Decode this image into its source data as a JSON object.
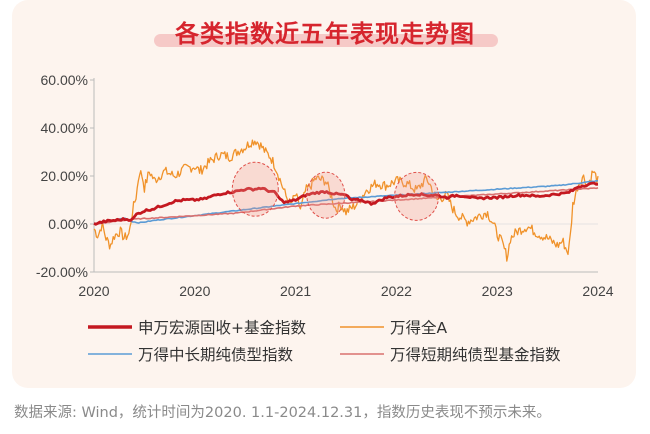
{
  "title": "各类指数近五年表现走势图",
  "footnote": "数据来源: Wind，统计时间为2020. 1.1-2024.12.31，指数历史表现不预示未来。",
  "chart_data": {
    "type": "line",
    "title": "各类指数近五年表现走势图",
    "xlabel": "",
    "ylabel": "",
    "x_ticks": [
      "2020",
      "2020",
      "2021",
      "2022",
      "2023",
      "2024"
    ],
    "y_ticks": [
      "60.00%",
      "40.00%",
      "20.00%",
      "0.00%",
      "-20.00%"
    ],
    "xlim": [
      2020.0,
      2025.0
    ],
    "ylim": [
      -20,
      60
    ],
    "grid": false,
    "legend_position": "bottom",
    "highlight_circles": [
      "late-2020",
      "mid-2021",
      "mid-2022"
    ],
    "series": [
      {
        "name": "申万宏源固收+基金指数",
        "color": "#c41820",
        "style": "thick",
        "points": [
          [
            2020.0,
            0
          ],
          [
            2020.1,
            1
          ],
          [
            2020.2,
            1.5
          ],
          [
            2020.3,
            2
          ],
          [
            2020.38,
            1.8
          ],
          [
            2020.42,
            4
          ],
          [
            2020.5,
            5.5
          ],
          [
            2020.6,
            6.5
          ],
          [
            2020.7,
            8
          ],
          [
            2020.8,
            9.5
          ],
          [
            2020.9,
            10
          ],
          [
            2021.0,
            10
          ],
          [
            2021.1,
            10.5
          ],
          [
            2021.2,
            12
          ],
          [
            2021.3,
            13
          ],
          [
            2021.4,
            13.5
          ],
          [
            2021.5,
            14.5
          ],
          [
            2021.6,
            14.5
          ],
          [
            2021.65,
            15
          ],
          [
            2021.72,
            14
          ],
          [
            2021.8,
            13
          ],
          [
            2021.85,
            10
          ],
          [
            2021.9,
            9
          ],
          [
            2022.0,
            10
          ],
          [
            2022.1,
            12
          ],
          [
            2022.2,
            13
          ],
          [
            2022.3,
            13.5
          ],
          [
            2022.4,
            12.5
          ],
          [
            2022.5,
            12
          ],
          [
            2022.55,
            10
          ],
          [
            2022.65,
            10
          ],
          [
            2022.75,
            8.5
          ],
          [
            2022.85,
            10
          ],
          [
            2022.9,
            11
          ],
          [
            2023.0,
            11.5
          ],
          [
            2023.1,
            12
          ],
          [
            2023.2,
            12.5
          ],
          [
            2023.3,
            12
          ],
          [
            2023.4,
            12
          ],
          [
            2023.5,
            11
          ],
          [
            2023.6,
            12
          ],
          [
            2023.7,
            11.5
          ],
          [
            2023.8,
            10.5
          ],
          [
            2023.9,
            11
          ],
          [
            2024.0,
            11
          ],
          [
            2024.1,
            11.5
          ],
          [
            2024.2,
            12
          ],
          [
            2024.3,
            12
          ],
          [
            2024.4,
            11.5
          ],
          [
            2024.5,
            12
          ],
          [
            2024.6,
            12.5
          ],
          [
            2024.7,
            13
          ],
          [
            2024.75,
            14
          ],
          [
            2024.8,
            15.5
          ],
          [
            2024.9,
            16.5
          ],
          [
            2025.0,
            17
          ]
        ]
      },
      {
        "name": "万得全A",
        "color": "#f0922a",
        "style": "thin-noisy",
        "points": [
          [
            2020.0,
            -2
          ],
          [
            2020.04,
            -5
          ],
          [
            2020.08,
            0
          ],
          [
            2020.12,
            -6
          ],
          [
            2020.16,
            -9
          ],
          [
            2020.2,
            -5
          ],
          [
            2020.26,
            -3
          ],
          [
            2020.3,
            -6
          ],
          [
            2020.35,
            -4
          ],
          [
            2020.38,
            5
          ],
          [
            2020.42,
            12
          ],
          [
            2020.45,
            22
          ],
          [
            2020.48,
            20
          ],
          [
            2020.5,
            15
          ],
          [
            2020.55,
            22
          ],
          [
            2020.6,
            18
          ],
          [
            2020.7,
            22
          ],
          [
            2020.8,
            20
          ],
          [
            2020.9,
            23
          ],
          [
            2021.0,
            24
          ],
          [
            2021.05,
            22
          ],
          [
            2021.15,
            26
          ],
          [
            2021.25,
            29
          ],
          [
            2021.35,
            28
          ],
          [
            2021.45,
            31
          ],
          [
            2021.5,
            32
          ],
          [
            2021.55,
            34
          ],
          [
            2021.6,
            35
          ],
          [
            2021.65,
            33
          ],
          [
            2021.7,
            30
          ],
          [
            2021.75,
            28
          ],
          [
            2021.8,
            24
          ],
          [
            2021.85,
            18
          ],
          [
            2021.9,
            12
          ],
          [
            2021.95,
            8
          ],
          [
            2022.0,
            12
          ],
          [
            2022.05,
            6
          ],
          [
            2022.1,
            14
          ],
          [
            2022.15,
            16
          ],
          [
            2022.2,
            19
          ],
          [
            2022.3,
            18
          ],
          [
            2022.35,
            12
          ],
          [
            2022.4,
            6
          ],
          [
            2022.45,
            8
          ],
          [
            2022.5,
            5
          ],
          [
            2022.6,
            8
          ],
          [
            2022.7,
            14
          ],
          [
            2022.8,
            17
          ],
          [
            2022.9,
            16
          ],
          [
            2023.0,
            18
          ],
          [
            2023.1,
            17
          ],
          [
            2023.2,
            14
          ],
          [
            2023.3,
            19
          ],
          [
            2023.35,
            15
          ],
          [
            2023.4,
            10
          ],
          [
            2023.5,
            12
          ],
          [
            2023.55,
            7
          ],
          [
            2023.6,
            4
          ],
          [
            2023.7,
            1
          ],
          [
            2023.8,
            3
          ],
          [
            2023.9,
            5
          ],
          [
            2023.95,
            1
          ],
          [
            2024.0,
            -4
          ],
          [
            2024.05,
            -8
          ],
          [
            2024.1,
            -14
          ],
          [
            2024.13,
            -6
          ],
          [
            2024.2,
            -3
          ],
          [
            2024.3,
            -1
          ],
          [
            2024.4,
            -4
          ],
          [
            2024.5,
            -6
          ],
          [
            2024.6,
            -9
          ],
          [
            2024.65,
            -7
          ],
          [
            2024.7,
            -12
          ],
          [
            2024.72,
            -8
          ],
          [
            2024.75,
            8
          ],
          [
            2024.8,
            16
          ],
          [
            2024.85,
            20
          ],
          [
            2024.9,
            16
          ],
          [
            2024.95,
            22
          ],
          [
            2025.0,
            18
          ]
        ]
      },
      {
        "name": "万得中长期纯债型指数",
        "color": "#5b9bd5",
        "style": "thin",
        "points": [
          [
            2020.0,
            0
          ],
          [
            2020.1,
            0.5
          ],
          [
            2020.2,
            1.5
          ],
          [
            2020.3,
            2.5
          ],
          [
            2020.38,
            1
          ],
          [
            2020.45,
            0.5
          ],
          [
            2020.6,
            1.5
          ],
          [
            2020.8,
            2.5
          ],
          [
            2021.0,
            3.5
          ],
          [
            2021.2,
            4.5
          ],
          [
            2021.4,
            5.5
          ],
          [
            2021.6,
            6.5
          ],
          [
            2021.8,
            7.5
          ],
          [
            2022.0,
            8.5
          ],
          [
            2022.2,
            9.5
          ],
          [
            2022.4,
            10.5
          ],
          [
            2022.6,
            11
          ],
          [
            2022.8,
            11.5
          ],
          [
            2023.0,
            12
          ],
          [
            2023.2,
            12.5
          ],
          [
            2023.4,
            13
          ],
          [
            2023.6,
            13.5
          ],
          [
            2023.8,
            14
          ],
          [
            2024.0,
            14.5
          ],
          [
            2024.2,
            15
          ],
          [
            2024.4,
            15.5
          ],
          [
            2024.6,
            16
          ],
          [
            2024.8,
            17
          ],
          [
            2025.0,
            18
          ]
        ]
      },
      {
        "name": "万得短期纯债型基金指数",
        "color": "#d9706f",
        "style": "thin",
        "points": [
          [
            2020.0,
            0
          ],
          [
            2020.2,
            1
          ],
          [
            2020.38,
            2
          ],
          [
            2020.6,
            2.5
          ],
          [
            2020.8,
            3
          ],
          [
            2021.0,
            3.5
          ],
          [
            2021.2,
            4
          ],
          [
            2021.4,
            4.5
          ],
          [
            2021.6,
            5.5
          ],
          [
            2021.8,
            6.5
          ],
          [
            2022.0,
            7.5
          ],
          [
            2022.2,
            8
          ],
          [
            2022.4,
            8.5
          ],
          [
            2022.6,
            9
          ],
          [
            2022.8,
            9.5
          ],
          [
            2023.0,
            10
          ],
          [
            2023.2,
            10.5
          ],
          [
            2023.4,
            11
          ],
          [
            2023.6,
            11.5
          ],
          [
            2023.8,
            12
          ],
          [
            2024.0,
            12.5
          ],
          [
            2024.2,
            13
          ],
          [
            2024.4,
            13.5
          ],
          [
            2024.6,
            14
          ],
          [
            2024.8,
            14.5
          ],
          [
            2025.0,
            15
          ]
        ]
      }
    ]
  }
}
